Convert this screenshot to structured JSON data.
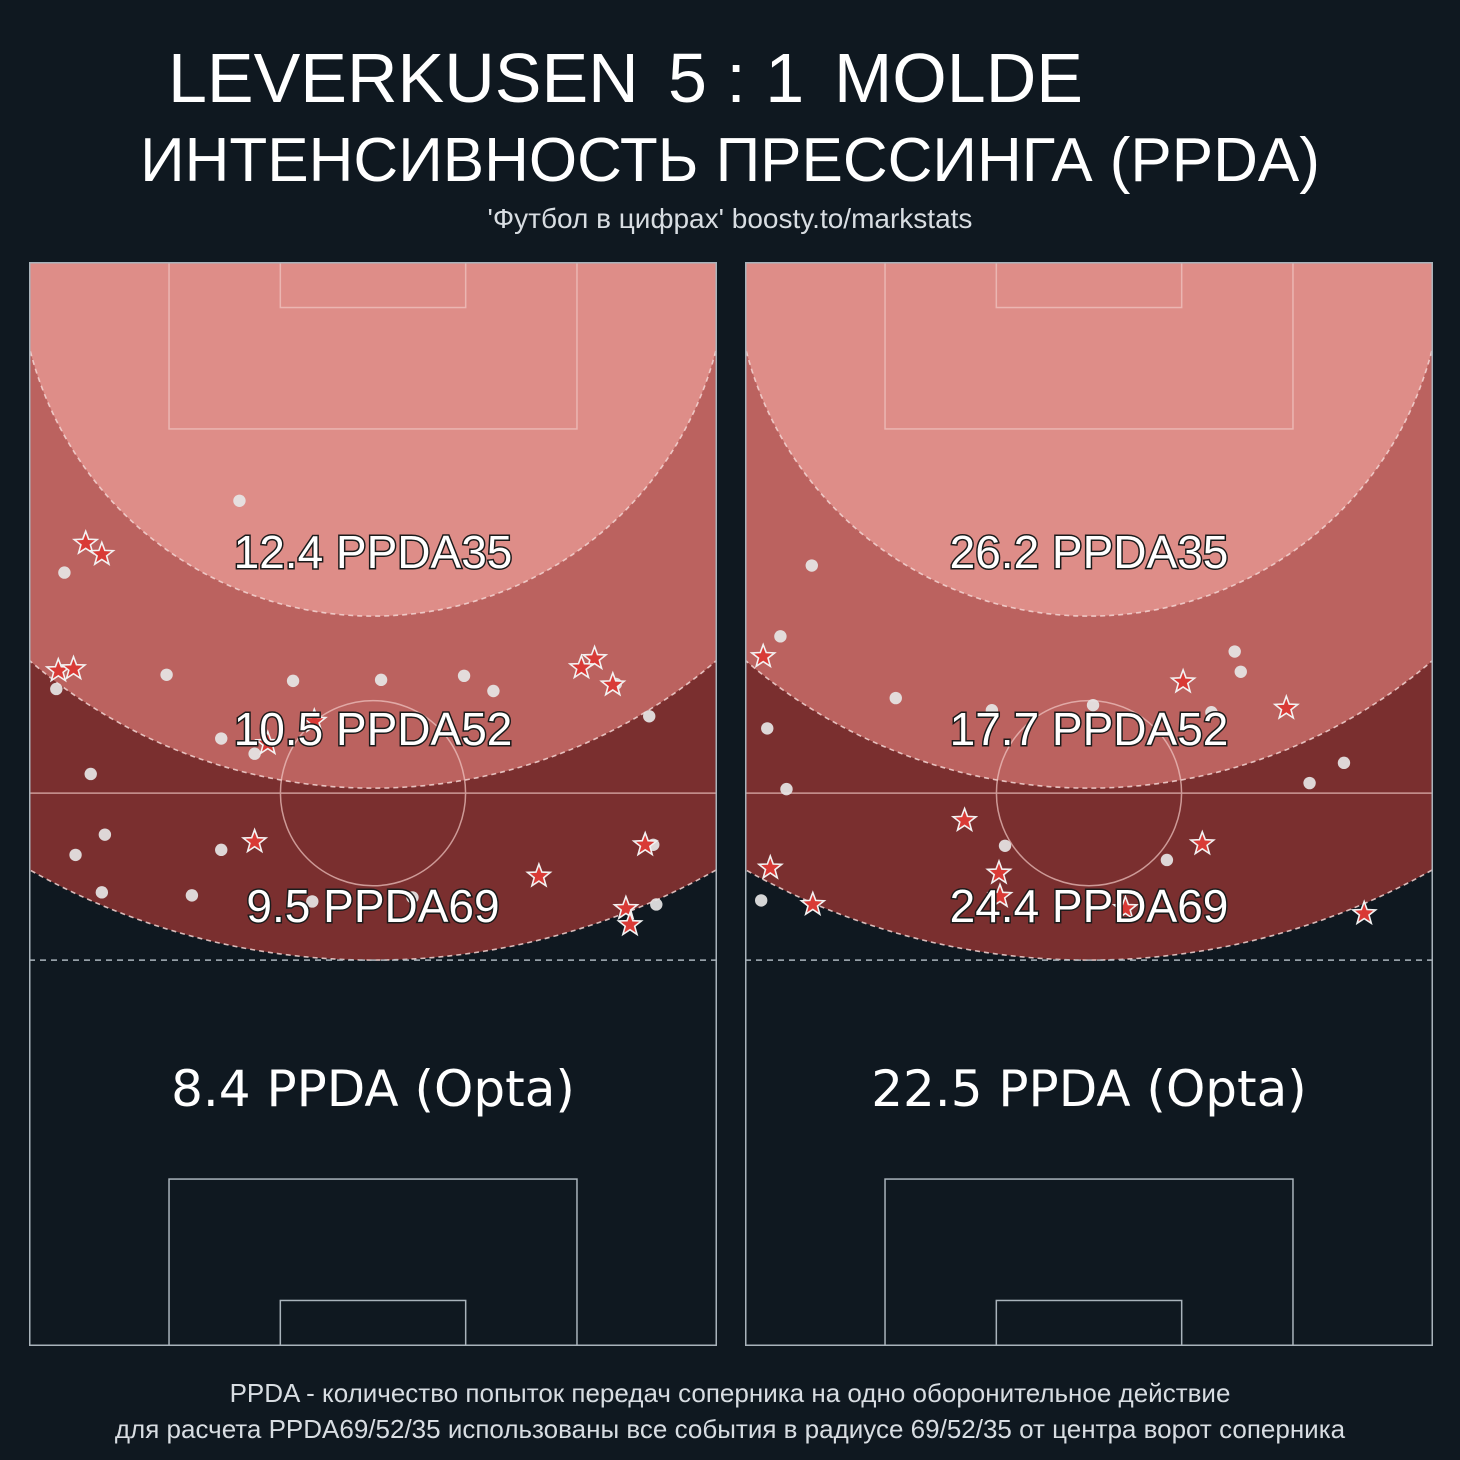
{
  "header": {
    "home_team": "LEVERKUSEN",
    "score": "5 : 1",
    "away_team": "MOLDE",
    "subtitle": "ИНТЕНСИВНОСТЬ ПРЕССИНГА (PPDA)",
    "source": "'Футбол в цифрах' boosty.to/markstats"
  },
  "footer": {
    "line1": "PPDA - количество попыток передач соперника на одно оборонительное действие",
    "line2": "для расчета PPDA69/52/35 использованы все события в радиусе 69/52/35 от центра ворот соперника"
  },
  "colors": {
    "background": "#0f1820",
    "zone35": "#de8d88",
    "zone52": "#bb625f",
    "zone69": "#7a2f2f",
    "star": "#d93a36",
    "dot": "#e6e6e6"
  },
  "chart_data": [
    {
      "type": "scatter",
      "team": "LEVERKUSEN",
      "zones": [
        {
          "label": "12.4 PPDA35",
          "radius": 35,
          "value": 12.4
        },
        {
          "label": "10.5 PPDA52",
          "radius": 52,
          "value": 10.5
        },
        {
          "label": "9.5 PPDA69",
          "radius": 69,
          "value": 9.5
        }
      ],
      "opta_label": "8.4 PPDA (Opta)",
      "opta_value": 8.4,
      "stars": [
        [
          5.6,
          77.2
        ],
        [
          7.2,
          76.1
        ],
        [
          2.9,
          64.6
        ],
        [
          4.4,
          64.8
        ],
        [
          55.9,
          65.8
        ],
        [
          54.6,
          64.9
        ],
        [
          57.7,
          63.2
        ],
        [
          28.2,
          59.6
        ],
        [
          23.6,
          57.4
        ],
        [
          60.9,
          47.4
        ],
        [
          22.3,
          47.7
        ],
        [
          50.4,
          44.3
        ],
        [
          59.0,
          41.1
        ],
        [
          59.4,
          39.5
        ]
      ],
      "dots": [
        [
          20.8,
          81.4
        ],
        [
          3.5,
          74.3
        ],
        [
          45.9,
          62.6
        ],
        [
          58.0,
          63.3
        ],
        [
          13.6,
          64.2
        ],
        [
          2.7,
          62.8
        ],
        [
          26.1,
          63.6
        ],
        [
          34.8,
          63.7
        ],
        [
          43.0,
          64.1
        ],
        [
          61.3,
          60.1
        ],
        [
          19.0,
          57.9
        ],
        [
          22.3,
          56.4
        ],
        [
          6.1,
          54.4
        ],
        [
          7.5,
          48.4
        ],
        [
          61.7,
          47.4
        ],
        [
          19.0,
          46.9
        ],
        [
          4.6,
          46.4
        ],
        [
          7.2,
          42.7
        ],
        [
          16.1,
          42.4
        ],
        [
          28.0,
          41.8
        ],
        [
          37.9,
          42.2
        ],
        [
          62.0,
          41.5
        ]
      ]
    },
    {
      "type": "scatter",
      "team": "MOLDE",
      "zones": [
        {
          "label": "26.2 PPDA35",
          "radius": 35,
          "value": 26.2
        },
        {
          "label": "17.7 PPDA52",
          "radius": 52,
          "value": 17.7
        },
        {
          "label": "24.4 PPDA69",
          "radius": 69,
          "value": 24.4
        }
      ],
      "opta_label": "22.5 PPDA (Opta)",
      "opta_value": 22.5,
      "stars": [
        [
          1.8,
          66.0
        ],
        [
          43.3,
          63.5
        ],
        [
          53.5,
          60.9
        ],
        [
          21.7,
          49.8
        ],
        [
          45.2,
          47.5
        ],
        [
          2.5,
          45.1
        ],
        [
          25.1,
          44.6
        ],
        [
          25.2,
          42.3
        ],
        [
          6.7,
          41.5
        ],
        [
          37.6,
          41.1
        ],
        [
          61.2,
          40.6
        ]
      ],
      "dots": [
        [
          6.6,
          75.0
        ],
        [
          3.5,
          68.0
        ],
        [
          48.4,
          66.5
        ],
        [
          49.0,
          64.5
        ],
        [
          14.9,
          61.9
        ],
        [
          24.4,
          60.7
        ],
        [
          34.4,
          61.2
        ],
        [
          46.1,
          60.5
        ],
        [
          2.2,
          58.9
        ],
        [
          59.2,
          55.5
        ],
        [
          4.1,
          52.9
        ],
        [
          55.8,
          53.5
        ],
        [
          25.7,
          47.3
        ],
        [
          41.7,
          45.9
        ],
        [
          1.6,
          41.9
        ]
      ]
    }
  ]
}
